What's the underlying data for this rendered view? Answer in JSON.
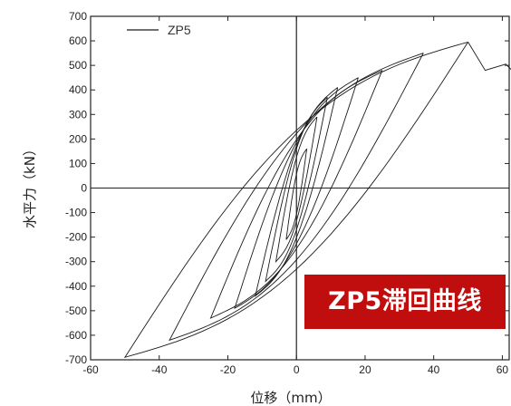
{
  "chart_data": {
    "type": "line",
    "title": "",
    "xlabel": "位移（mm）",
    "ylabel": "水平力（kN）",
    "xlim": [
      -60,
      62
    ],
    "ylim": [
      -700,
      700
    ],
    "xticks": [
      -60,
      -40,
      -20,
      0,
      20,
      40,
      60
    ],
    "yticks": [
      700,
      600,
      500,
      400,
      300,
      200,
      100,
      0,
      -100,
      -200,
      -300,
      -400,
      -500,
      -600,
      -700
    ],
    "legend": {
      "position": "top-left",
      "entries": [
        "ZP5"
      ]
    },
    "grid": false,
    "colors": {
      "series": "#1a1a1a",
      "axis": "#222222"
    },
    "series": [
      {
        "name": "ZP5",
        "loops": [
          {
            "amplitude": 3,
            "peak_pos": 160,
            "peak_neg": -210
          },
          {
            "amplitude": 6,
            "peak_pos": 290,
            "peak_neg": -300
          },
          {
            "amplitude": 9,
            "peak_pos": 370,
            "peak_neg": -380
          },
          {
            "amplitude": 12,
            "peak_pos": 410,
            "peak_neg": -440
          },
          {
            "amplitude": 18,
            "peak_pos": 450,
            "peak_neg": -490
          },
          {
            "amplitude": 25,
            "peak_pos": 480,
            "peak_neg": -530
          },
          {
            "amplitude": 37,
            "peak_pos": 550,
            "peak_neg": -620
          },
          {
            "amplitude": 50,
            "peak_pos": 595,
            "peak_neg": -690
          }
        ],
        "envelope_tail": [
          [
            50,
            595
          ],
          [
            55,
            480
          ],
          [
            61,
            505
          ],
          [
            65,
            450
          ]
        ]
      }
    ],
    "annotation": "ZP5滞回曲线"
  },
  "banner": {
    "text": "ZP5滞回曲线",
    "color": "#c00d0d"
  }
}
